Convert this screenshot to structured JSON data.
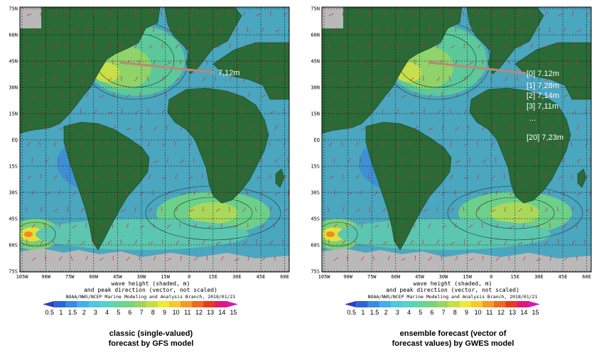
{
  "lat_labels": [
    "75N",
    "60N",
    "45N",
    "30N",
    "15N",
    "EQ",
    "15S",
    "30S",
    "45S",
    "60S",
    "75S"
  ],
  "lon_labels": [
    "105W",
    "90W",
    "75W",
    "60W",
    "45W",
    "30W",
    "15W",
    "0",
    "15E",
    "30E",
    "45E",
    "60E"
  ],
  "caption_line1": "wave height (shaded, m)",
  "caption_line2": "and peak direction (vector, not scaled)",
  "credit": "NOAA/NWS/NCEP Marine Modeling and Analysis Branch, 2018/01/21",
  "colorbar": {
    "ticks": [
      "0.5",
      "1",
      "1.5",
      "2",
      "3",
      "4",
      "5",
      "6",
      "7",
      "8",
      "9",
      "10",
      "11",
      "12",
      "13",
      "14",
      "15"
    ],
    "colors": [
      "#2d3fbf",
      "#2f64d8",
      "#3a8ae6",
      "#46aee8",
      "#4fc8e0",
      "#58d2c4",
      "#62d6a0",
      "#76d47e",
      "#9ad560",
      "#c6de46",
      "#ecea36",
      "#f8c82c",
      "#f49a26",
      "#ee6a22",
      "#e83a1e",
      "#e0187e",
      "#d21ab8"
    ]
  },
  "colors": {
    "land": "#2b6a36",
    "ocean": "#4ba6bf",
    "ice": "#b9b9b9",
    "track": "#b88a78"
  },
  "left_panel": {
    "annotations": [
      "7,12m"
    ],
    "description": [
      "classic (single-valued)",
      "forecast by GFS model"
    ]
  },
  "right_panel": {
    "annotations": [
      "[0] 7.12m",
      "[1] 7,28m",
      "[2] 7,14m",
      "[3] 7,11m",
      "...",
      "[20] 7,23m"
    ],
    "description": [
      "ensemble forecast (vector of",
      "forecast values) by GWES model"
    ]
  }
}
